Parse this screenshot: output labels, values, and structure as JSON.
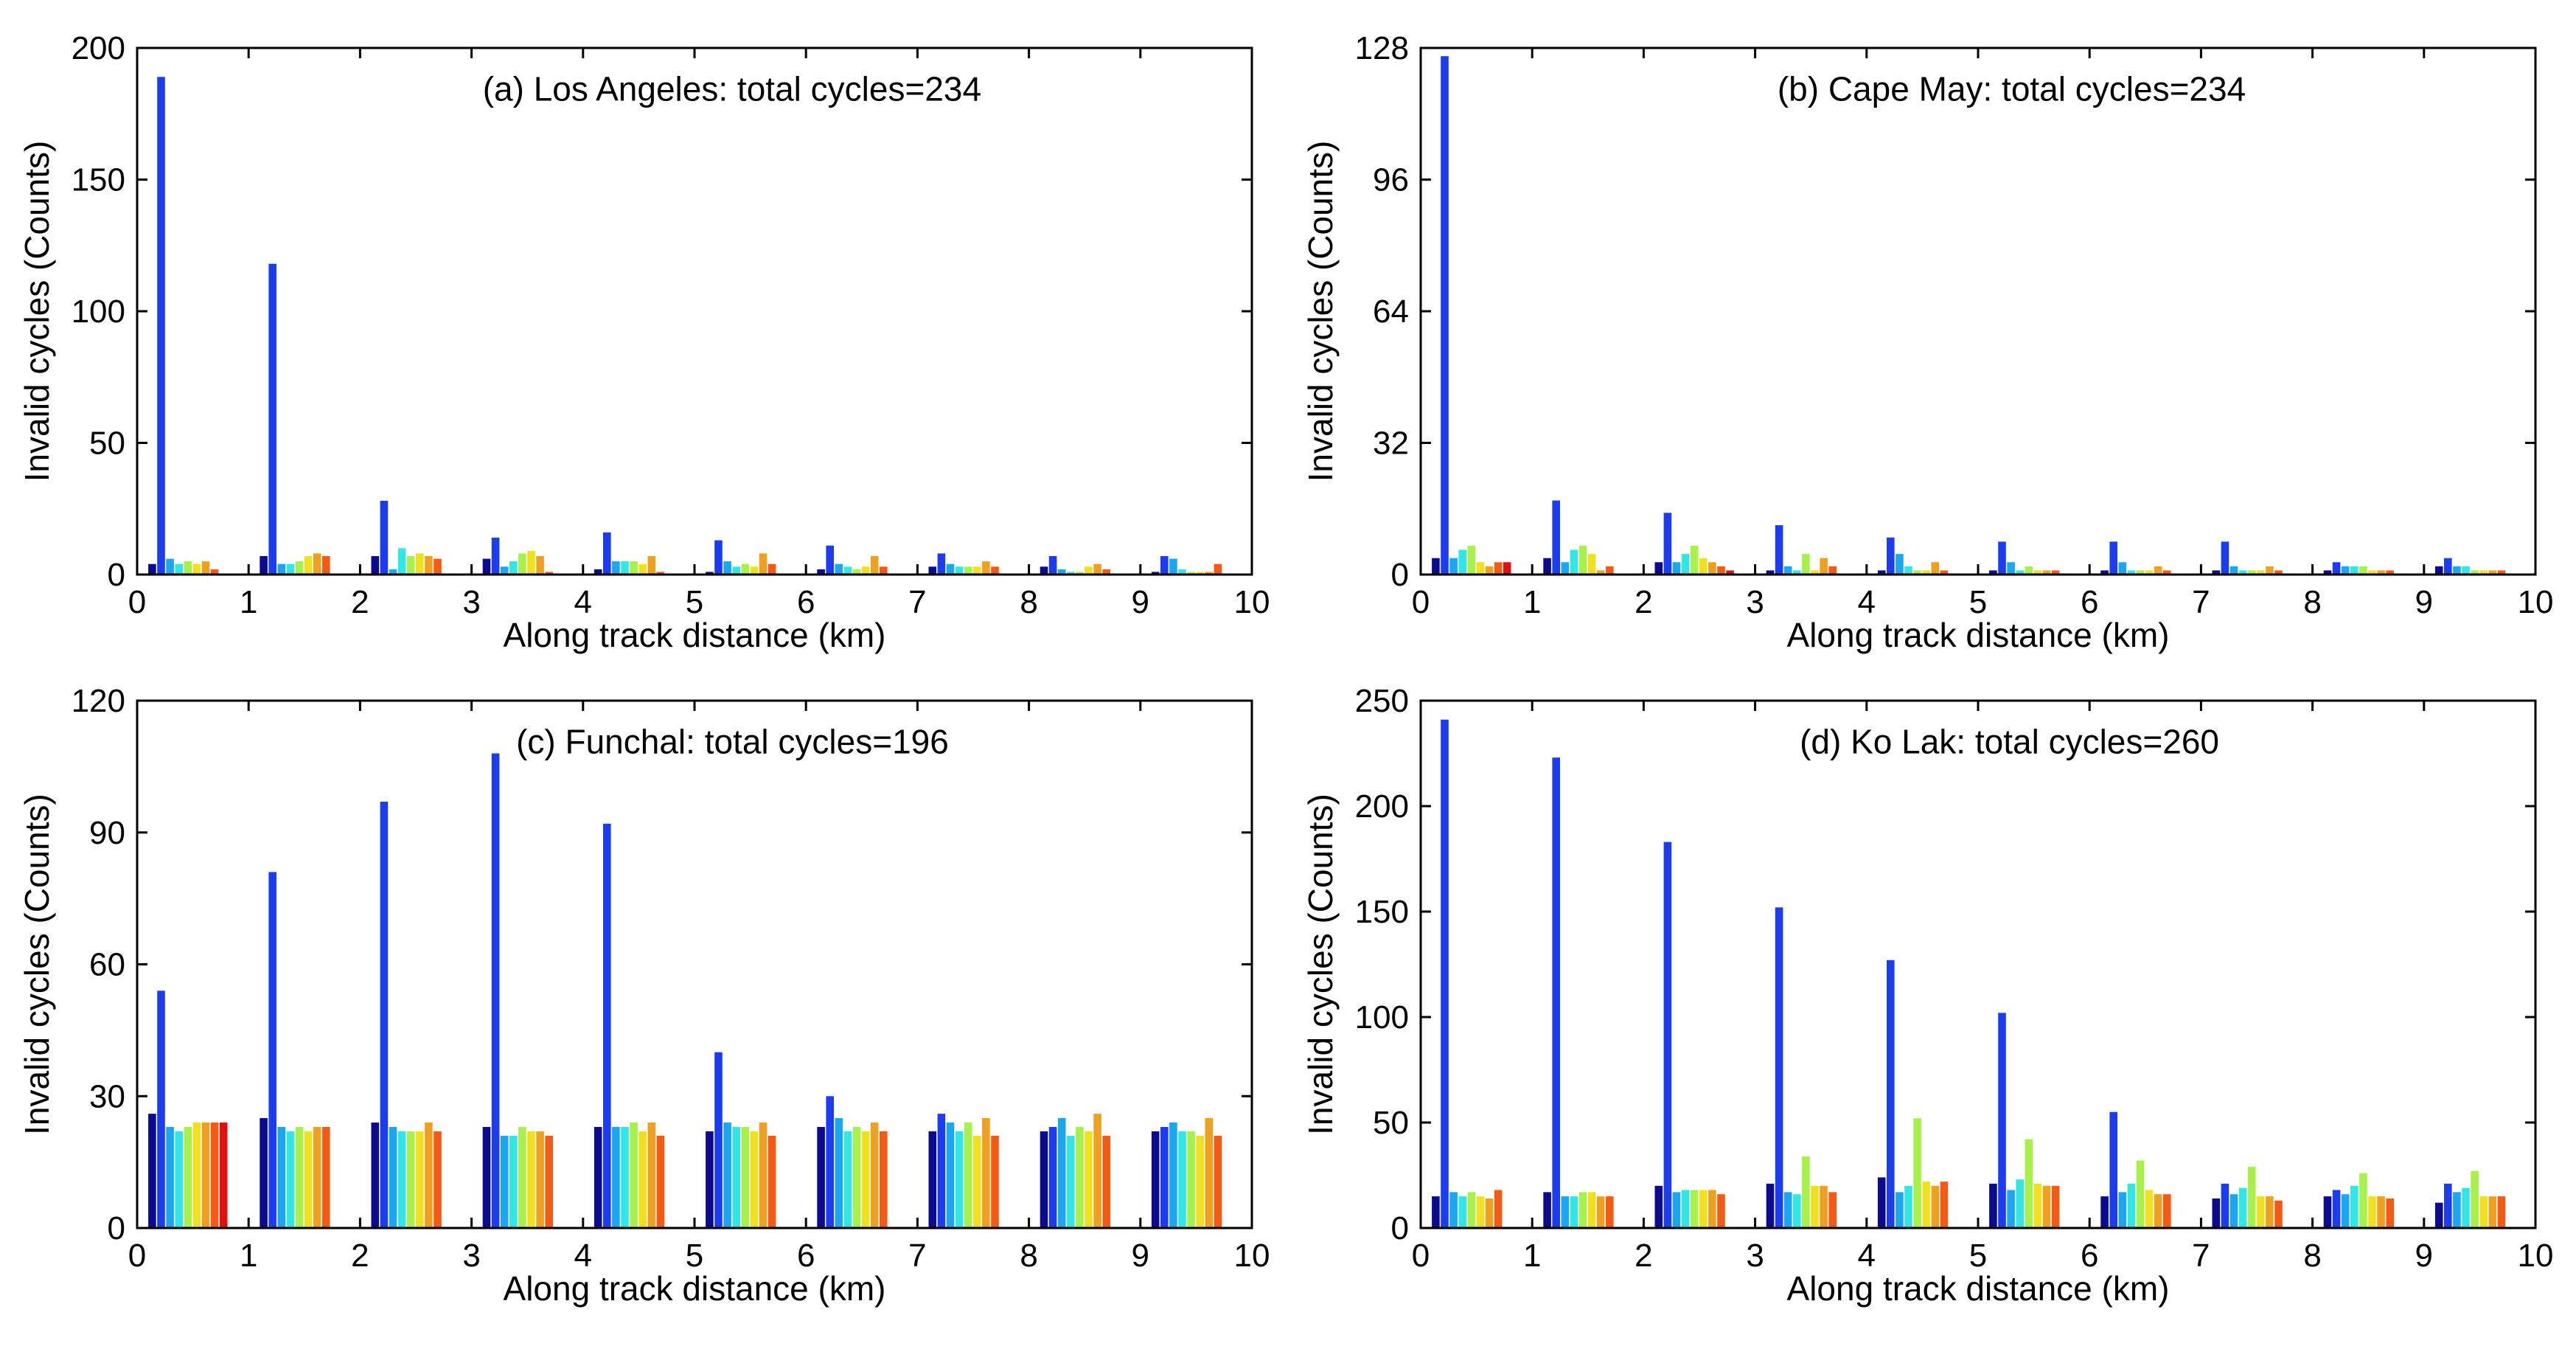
{
  "figure": {
    "group_colors": [
      "#0b0b8f",
      "#1c3cf0",
      "#1aa6f0",
      "#33e6e6",
      "#a8f04a",
      "#f0e020",
      "#f0a020",
      "#f55a14",
      "#e01010",
      "#9c0606"
    ]
  },
  "chart_data": [
    {
      "type": "bar",
      "title": "(a) Los Angeles: total cycles=234",
      "xlabel": "Along track distance (km)",
      "ylabel": "Invalid cycles (Counts)",
      "xlim": [
        0,
        10
      ],
      "ylim": [
        0,
        200
      ],
      "xticks": [
        0,
        1,
        2,
        3,
        4,
        5,
        6,
        7,
        8,
        9,
        10
      ],
      "yticks": [
        0,
        50,
        100,
        150,
        200
      ],
      "grid": false,
      "groups": [
        0.5,
        1.5,
        2.5,
        3.5,
        4.5,
        5.5,
        6.5,
        7.5,
        8.5,
        9.5
      ],
      "values": [
        [
          4,
          189,
          6,
          4,
          5,
          4,
          5,
          2,
          0,
          0
        ],
        [
          7,
          118,
          4,
          4,
          5,
          7,
          8,
          7,
          0,
          0
        ],
        [
          7,
          28,
          2,
          10,
          7,
          8,
          7,
          6,
          0,
          0
        ],
        [
          6,
          14,
          3,
          5,
          8,
          9,
          7,
          1,
          0,
          0
        ],
        [
          2,
          16,
          5,
          5,
          5,
          4,
          7,
          1,
          0,
          0
        ],
        [
          1,
          13,
          5,
          3,
          4,
          3,
          8,
          4,
          0,
          0
        ],
        [
          2,
          11,
          4,
          3,
          2,
          3,
          7,
          3,
          0,
          0
        ],
        [
          3,
          8,
          4,
          3,
          3,
          3,
          5,
          3,
          0,
          0
        ],
        [
          3,
          7,
          2,
          1,
          1,
          3,
          4,
          2,
          0,
          0
        ],
        [
          1,
          7,
          6,
          2,
          1,
          1,
          1,
          4,
          0,
          0
        ]
      ]
    },
    {
      "type": "bar",
      "title": "(b) Cape May: total cycles=234",
      "xlabel": "Along track distance (km)",
      "ylabel": "Invalid cycles (Counts)",
      "xlim": [
        0,
        10
      ],
      "ylim": [
        0,
        128
      ],
      "xticks": [
        0,
        1,
        2,
        3,
        4,
        5,
        6,
        7,
        8,
        9,
        10
      ],
      "yticks": [
        0,
        32,
        64,
        96,
        128
      ],
      "grid": false,
      "groups": [
        0.5,
        1.5,
        2.5,
        3.5,
        4.5,
        5.5,
        6.5,
        7.5,
        8.5,
        9.5
      ],
      "values": [
        [
          4,
          126,
          4,
          6,
          7,
          3,
          2,
          3,
          3,
          0
        ],
        [
          4,
          18,
          3,
          6,
          7,
          5,
          1,
          2,
          0,
          0
        ],
        [
          3,
          15,
          3,
          5,
          7,
          4,
          3,
          2,
          1,
          0
        ],
        [
          1,
          12,
          2,
          1,
          5,
          1,
          4,
          2,
          0,
          0
        ],
        [
          1,
          9,
          5,
          2,
          1,
          1,
          3,
          1,
          0,
          0
        ],
        [
          1,
          8,
          3,
          1,
          2,
          1,
          1,
          1,
          0,
          0
        ],
        [
          1,
          8,
          3,
          1,
          1,
          1,
          2,
          1,
          0,
          0
        ],
        [
          1,
          8,
          2,
          1,
          1,
          1,
          2,
          1,
          0,
          0
        ],
        [
          1,
          3,
          2,
          2,
          2,
          1,
          1,
          1,
          0,
          0
        ],
        [
          2,
          4,
          2,
          2,
          1,
          1,
          1,
          1,
          0,
          0
        ]
      ]
    },
    {
      "type": "bar",
      "title": "(c) Funchal: total cycles=196",
      "xlabel": "Along track distance (km)",
      "ylabel": "Invalid cycles (Counts)",
      "xlim": [
        0,
        10
      ],
      "ylim": [
        0,
        120
      ],
      "xticks": [
        0,
        1,
        2,
        3,
        4,
        5,
        6,
        7,
        8,
        9,
        10
      ],
      "yticks": [
        0,
        30,
        60,
        90,
        120
      ],
      "grid": false,
      "groups": [
        0.5,
        1.5,
        2.5,
        3.5,
        4.5,
        5.5,
        6.5,
        7.5,
        8.5,
        9.5
      ],
      "values": [
        [
          26,
          54,
          23,
          22,
          23,
          24,
          24,
          24,
          24,
          0
        ],
        [
          25,
          81,
          23,
          22,
          23,
          22,
          23,
          23,
          0,
          0
        ],
        [
          24,
          97,
          23,
          22,
          22,
          22,
          24,
          22,
          0,
          0
        ],
        [
          23,
          108,
          21,
          21,
          23,
          22,
          22,
          21,
          0,
          0
        ],
        [
          23,
          92,
          23,
          23,
          24,
          22,
          24,
          21,
          0,
          0
        ],
        [
          22,
          40,
          24,
          23,
          23,
          22,
          24,
          21,
          0,
          0
        ],
        [
          23,
          30,
          25,
          22,
          23,
          22,
          24,
          22,
          0,
          0
        ],
        [
          22,
          26,
          24,
          22,
          24,
          21,
          25,
          21,
          0,
          0
        ],
        [
          22,
          23,
          25,
          21,
          23,
          22,
          26,
          21,
          0,
          0
        ],
        [
          22,
          23,
          24,
          22,
          22,
          21,
          25,
          21,
          0,
          0
        ]
      ]
    },
    {
      "type": "bar",
      "title": "(d) Ko Lak:  total cycles=260",
      "xlabel": "Along track distance (km)",
      "ylabel": "Invalid cycles (Counts)",
      "xlim": [
        0,
        10
      ],
      "ylim": [
        0,
        250
      ],
      "xticks": [
        0,
        1,
        2,
        3,
        4,
        5,
        6,
        7,
        8,
        9,
        10
      ],
      "yticks": [
        0,
        50,
        100,
        150,
        200,
        250
      ],
      "grid": false,
      "groups": [
        0.5,
        1.5,
        2.5,
        3.5,
        4.5,
        5.5,
        6.5,
        7.5,
        8.5,
        9.5
      ],
      "values": [
        [
          15,
          241,
          17,
          15,
          17,
          15,
          14,
          18,
          0,
          0
        ],
        [
          17,
          223,
          15,
          15,
          17,
          17,
          15,
          15,
          0,
          0
        ],
        [
          20,
          183,
          17,
          18,
          18,
          18,
          18,
          16,
          0,
          0
        ],
        [
          21,
          152,
          17,
          16,
          34,
          20,
          20,
          17,
          0,
          0
        ],
        [
          24,
          127,
          17,
          20,
          52,
          22,
          20,
          22,
          0,
          0
        ],
        [
          21,
          102,
          18,
          23,
          42,
          21,
          20,
          20,
          0,
          0
        ],
        [
          15,
          55,
          17,
          21,
          32,
          18,
          16,
          16,
          0,
          0
        ],
        [
          14,
          21,
          16,
          19,
          29,
          15,
          15,
          13,
          0,
          0
        ],
        [
          15,
          18,
          16,
          20,
          26,
          15,
          15,
          14,
          0,
          0
        ],
        [
          12,
          21,
          17,
          19,
          27,
          15,
          15,
          15,
          0,
          0
        ]
      ]
    }
  ]
}
